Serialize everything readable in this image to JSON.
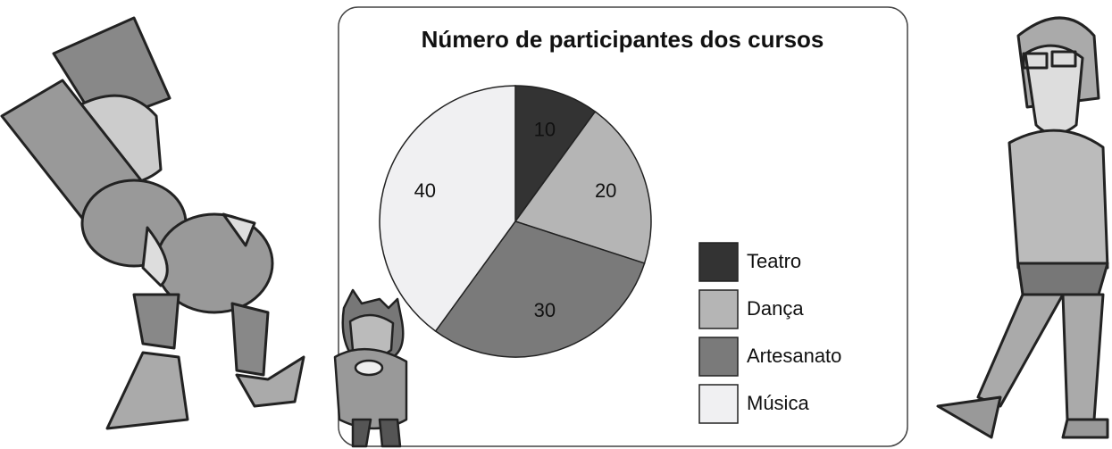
{
  "chart_data": {
    "type": "pie",
    "title": "Número de participantes dos cursos",
    "categories": [
      "Teatro",
      "Dança",
      "Artesanato",
      "Música"
    ],
    "values": [
      10,
      20,
      30,
      40
    ],
    "colors": [
      "#333333",
      "#b5b5b5",
      "#7a7a7a",
      "#f0f0f2"
    ]
  }
}
